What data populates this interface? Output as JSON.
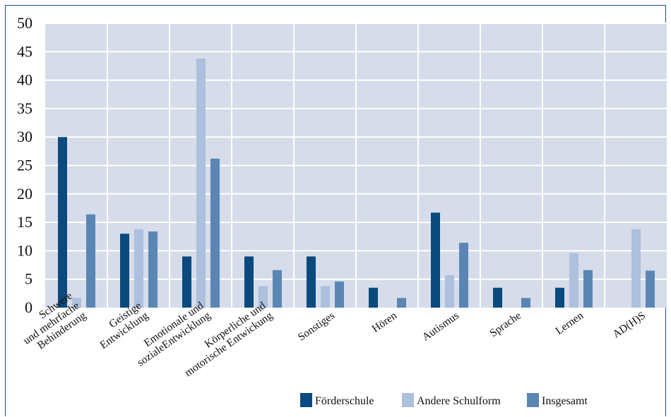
{
  "chart_data": {
    "type": "bar",
    "title": "",
    "xlabel": "",
    "ylabel": "",
    "ylim": [
      0,
      50
    ],
    "yticks": [
      0,
      5,
      10,
      15,
      20,
      25,
      30,
      35,
      40,
      45,
      50
    ],
    "grid": true,
    "legend_position": "bottom-right",
    "categories": [
      [
        "Schwere",
        "und mehrfache",
        "Behinderung"
      ],
      [
        "Geistige",
        "Entwicklung"
      ],
      [
        "Emotionale und",
        "sozialeEntwicklung"
      ],
      [
        "Körperliche und",
        "motorische Entwickung"
      ],
      [
        "Sonstiges"
      ],
      [
        "Hören"
      ],
      [
        "Autismus"
      ],
      [
        "Sprache"
      ],
      [
        "Lernen"
      ],
      [
        "AD(H)S"
      ]
    ],
    "series": [
      {
        "name": "Förderschule",
        "color": "#0a4a7e",
        "values": [
          30,
          13,
          9,
          9,
          9,
          3.5,
          16.7,
          3.5,
          3.5,
          null
        ]
      },
      {
        "name": "Andere Schulform",
        "color": "#adc0de",
        "values": [
          1.7,
          13.8,
          43.8,
          3.8,
          3.8,
          null,
          5.7,
          null,
          9.6,
          13.8
        ]
      },
      {
        "name": "Insgesamt",
        "color": "#5b86b4",
        "values": [
          16.4,
          13.4,
          26.2,
          6.6,
          4.6,
          1.7,
          11.4,
          1.7,
          6.6,
          6.5
        ]
      }
    ],
    "plot_background": "#d6dcea",
    "grid_color": "#ffffff"
  }
}
